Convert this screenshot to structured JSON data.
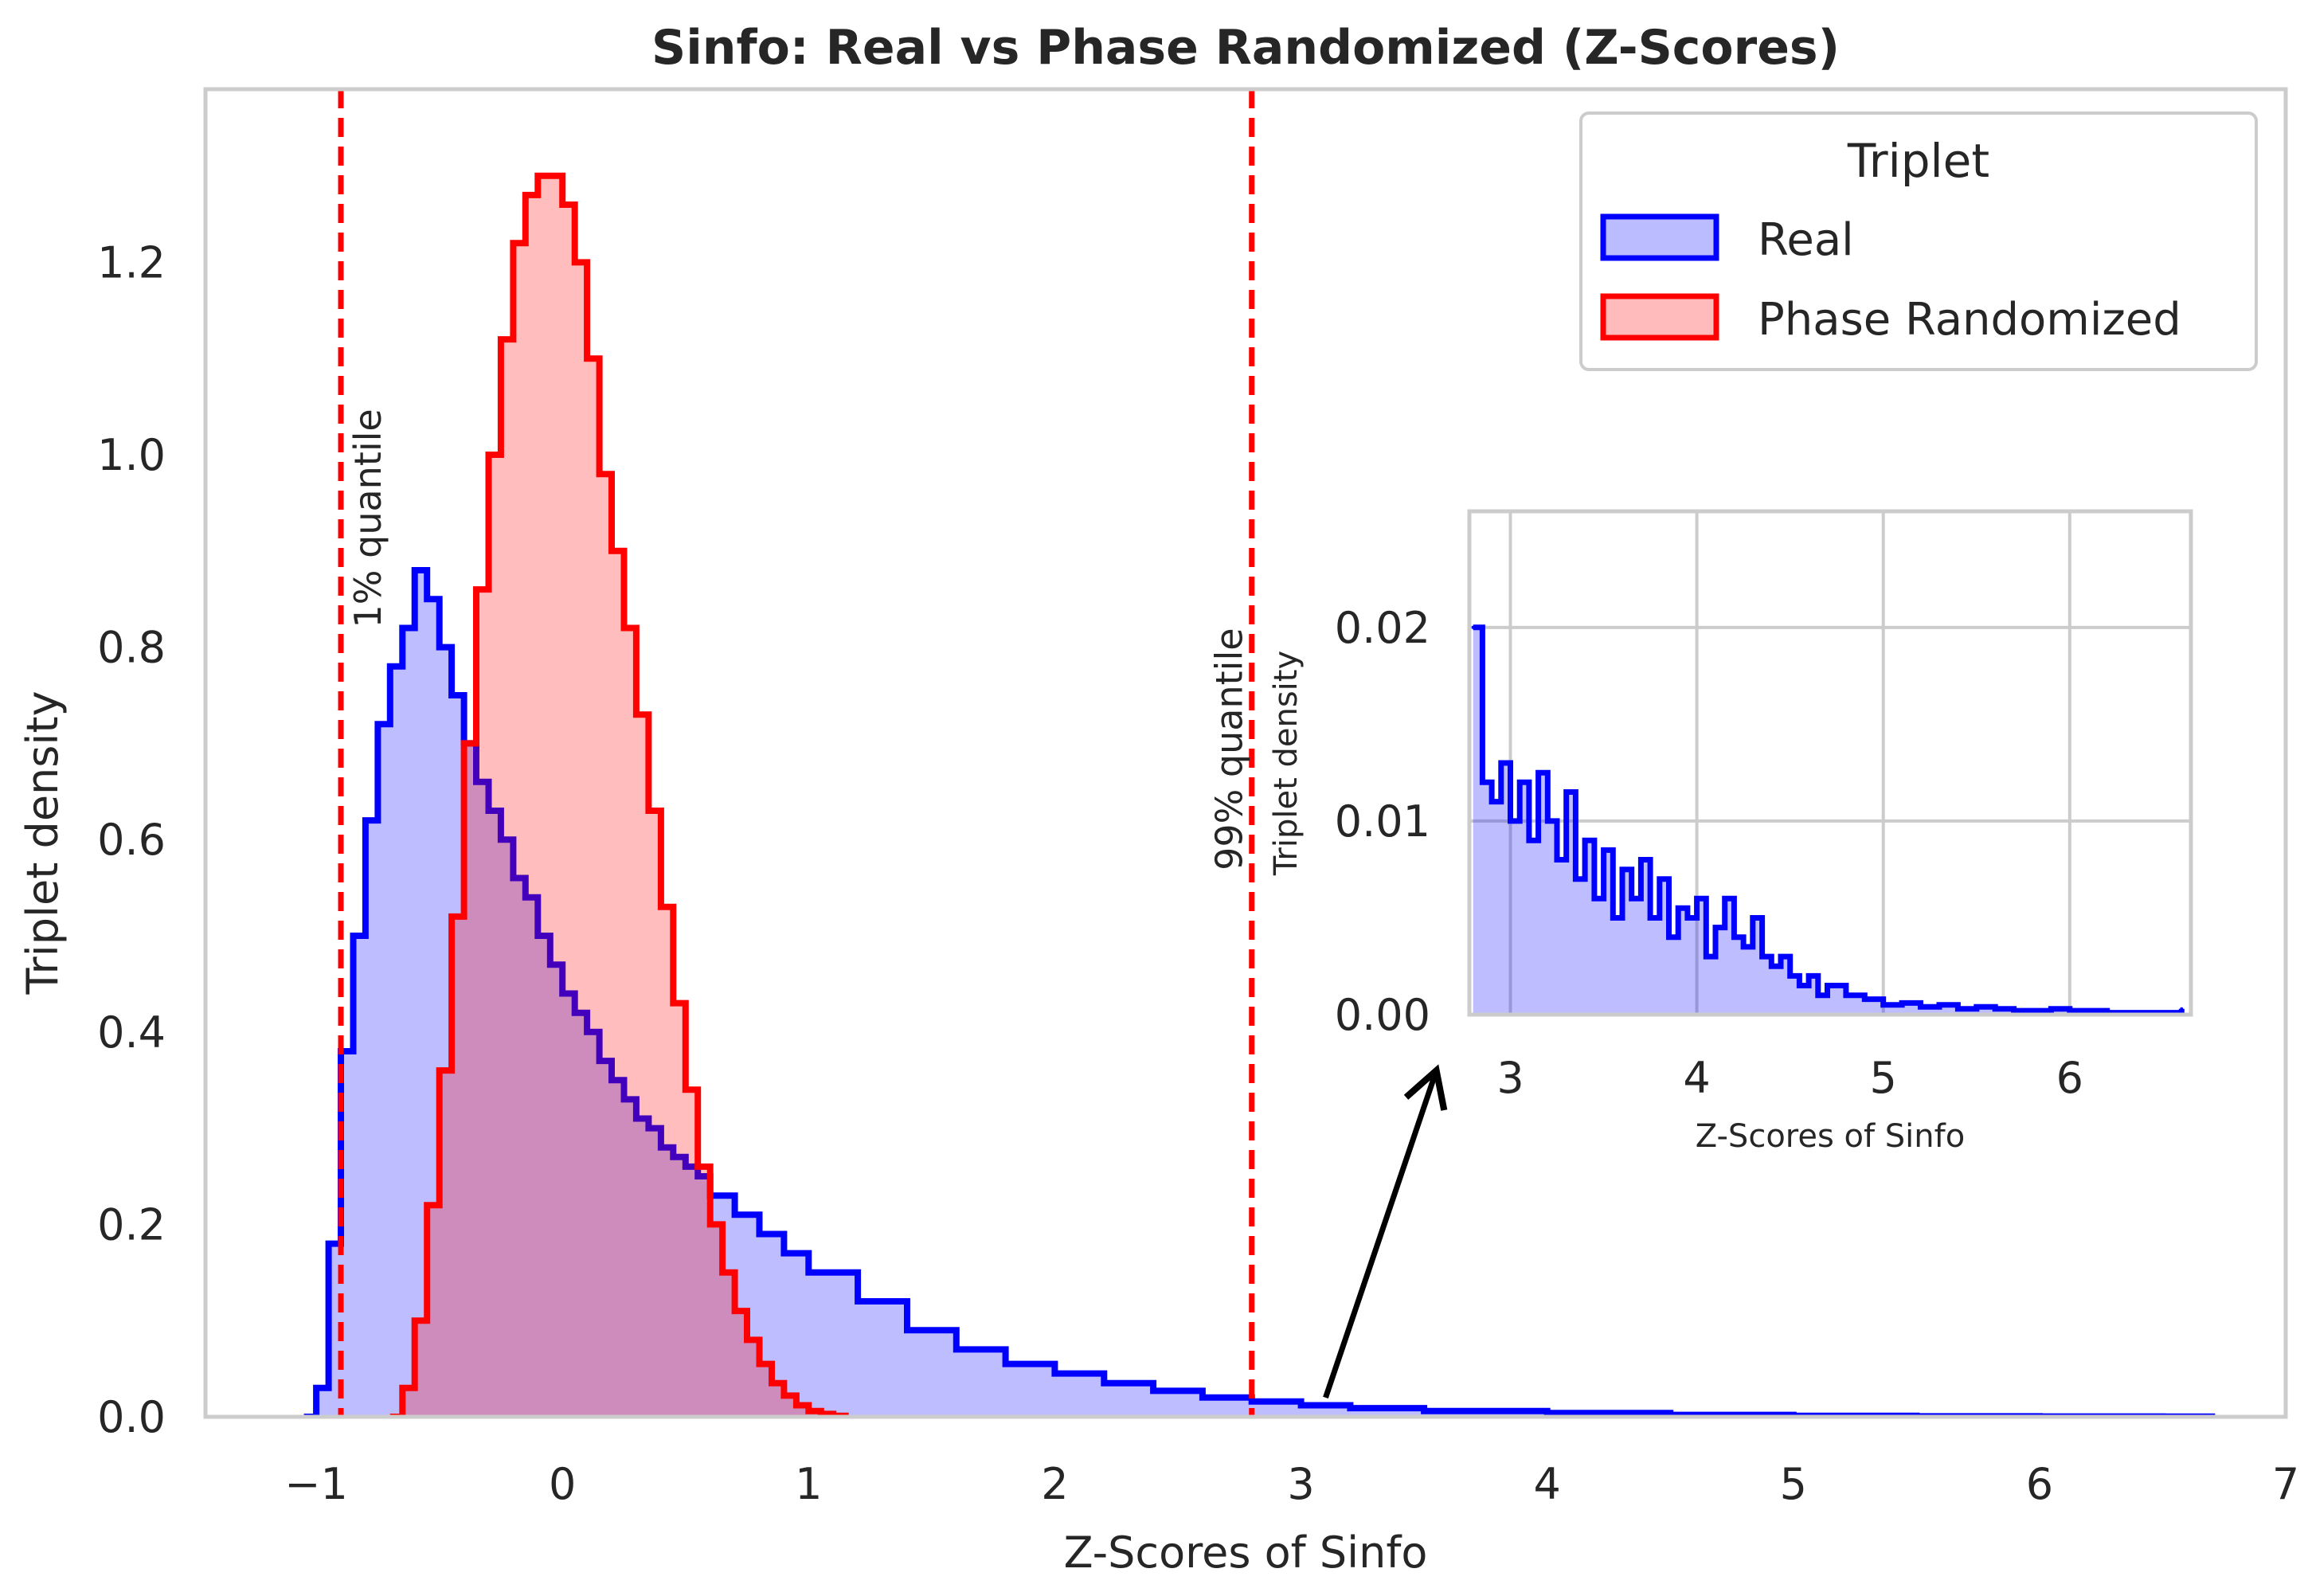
{
  "chart_data": [
    {
      "panel": "main",
      "type": "histogram-step",
      "title": "Sinfo: Real vs Phase Randomized (Z-Scores)",
      "xlabel": "Z-Scores of Sinfo",
      "ylabel": "Triplet density",
      "xlim": [
        -1.45,
        7.0
      ],
      "ylim": [
        0,
        1.38
      ],
      "xticks": [
        -1,
        0,
        1,
        2,
        3,
        4,
        5,
        6,
        7
      ],
      "xtick_labels": [
        "−1",
        "0",
        "1",
        "2",
        "3",
        "4",
        "5",
        "6",
        "7"
      ],
      "yticks": [
        0.0,
        0.2,
        0.4,
        0.6,
        0.8,
        1.0,
        1.2
      ],
      "ytick_labels": [
        "0.0",
        "0.2",
        "0.4",
        "0.6",
        "0.8",
        "1.0",
        "1.2"
      ],
      "grid": false,
      "legend": {
        "title": "Triplet",
        "placement": "upper right",
        "entries": [
          {
            "name": "Real",
            "edge": "#0000ff",
            "fill": "#bbbbff"
          },
          {
            "name": "Phase Randomized",
            "edge": "#ff0000",
            "fill": "#ffbbbb"
          }
        ]
      },
      "series": [
        {
          "name": "Real",
          "color": "#0000ff",
          "fill": "#0000ff",
          "x": [
            -1.05,
            -1.0,
            -0.95,
            -0.9,
            -0.85,
            -0.8,
            -0.75,
            -0.7,
            -0.65,
            -0.6,
            -0.55,
            -0.5,
            -0.45,
            -0.4,
            -0.35,
            -0.3,
            -0.25,
            -0.2,
            -0.15,
            -0.1,
            -0.05,
            0.0,
            0.05,
            0.1,
            0.15,
            0.2,
            0.25,
            0.3,
            0.35,
            0.4,
            0.45,
            0.5,
            0.55,
            0.6,
            0.7,
            0.8,
            0.9,
            1.0,
            1.2,
            1.4,
            1.6,
            1.8,
            2.0,
            2.2,
            2.4,
            2.6,
            2.8,
            3.0,
            3.2,
            3.5,
            4.0,
            4.5,
            5.0,
            5.5,
            6.0,
            6.5,
            6.7
          ],
          "y": [
            0.0,
            0.03,
            0.18,
            0.38,
            0.5,
            0.62,
            0.72,
            0.78,
            0.82,
            0.88,
            0.85,
            0.8,
            0.75,
            0.7,
            0.66,
            0.63,
            0.6,
            0.56,
            0.54,
            0.5,
            0.47,
            0.44,
            0.42,
            0.4,
            0.37,
            0.35,
            0.33,
            0.31,
            0.3,
            0.28,
            0.27,
            0.26,
            0.25,
            0.23,
            0.21,
            0.19,
            0.17,
            0.15,
            0.12,
            0.09,
            0.07,
            0.055,
            0.045,
            0.035,
            0.027,
            0.02,
            0.016,
            0.012,
            0.009,
            0.006,
            0.004,
            0.002,
            0.001,
            0.0005,
            0.0003,
            0.0002,
            0.0
          ]
        },
        {
          "name": "Phase Randomized",
          "color": "#ff0000",
          "fill": "#ff0000",
          "x": [
            -0.7,
            -0.65,
            -0.6,
            -0.55,
            -0.5,
            -0.45,
            -0.4,
            -0.35,
            -0.3,
            -0.25,
            -0.2,
            -0.15,
            -0.1,
            -0.05,
            0.0,
            0.05,
            0.1,
            0.15,
            0.2,
            0.25,
            0.3,
            0.35,
            0.4,
            0.45,
            0.5,
            0.55,
            0.6,
            0.65,
            0.7,
            0.75,
            0.8,
            0.85,
            0.9,
            0.95,
            1.0,
            1.05,
            1.1,
            1.15
          ],
          "y": [
            0.0,
            0.03,
            0.1,
            0.22,
            0.36,
            0.52,
            0.7,
            0.86,
            1.0,
            1.12,
            1.22,
            1.27,
            1.29,
            1.29,
            1.26,
            1.2,
            1.1,
            0.98,
            0.9,
            0.82,
            0.73,
            0.63,
            0.53,
            0.43,
            0.34,
            0.26,
            0.2,
            0.15,
            0.11,
            0.08,
            0.055,
            0.035,
            0.022,
            0.012,
            0.006,
            0.003,
            0.001,
            0.0
          ]
        }
      ],
      "annotations": [
        {
          "type": "vline",
          "x": -0.9,
          "label": "1% quantile",
          "style": "dashed",
          "color": "#ff0000"
        },
        {
          "type": "vline",
          "x": 2.8,
          "label": "99% quantile",
          "style": "dashed",
          "color": "#ff0000"
        },
        {
          "type": "arrow",
          "from": [
            3.1,
            0.02
          ],
          "to": [
            3.55,
            0.36
          ],
          "color": "#000000"
        }
      ]
    },
    {
      "panel": "inset",
      "type": "histogram-step",
      "xlabel": "Z-Scores of Sinfo",
      "ylabel": "Triplet density",
      "xlim": [
        2.78,
        6.65
      ],
      "ylim": [
        0,
        0.026
      ],
      "xticks": [
        3,
        4,
        5,
        6
      ],
      "xtick_labels": [
        "3",
        "4",
        "5",
        "6"
      ],
      "yticks": [
        0.0,
        0.01,
        0.02
      ],
      "ytick_labels": [
        "0.00",
        "0.01",
        "0.02"
      ],
      "grid": true,
      "series": [
        {
          "name": "Real",
          "color": "#0000ff",
          "x": [
            2.8,
            2.85,
            2.9,
            2.95,
            3.0,
            3.05,
            3.1,
            3.15,
            3.2,
            3.25,
            3.3,
            3.35,
            3.4,
            3.45,
            3.5,
            3.55,
            3.6,
            3.65,
            3.7,
            3.75,
            3.8,
            3.85,
            3.9,
            3.95,
            4.0,
            4.05,
            4.1,
            4.15,
            4.2,
            4.25,
            4.3,
            4.35,
            4.4,
            4.45,
            4.5,
            4.55,
            4.6,
            4.65,
            4.7,
            4.8,
            4.9,
            5.0,
            5.1,
            5.2,
            5.3,
            5.4,
            5.5,
            5.6,
            5.7,
            5.8,
            5.9,
            6.0,
            6.2,
            6.4,
            6.6
          ],
          "y": [
            0.02,
            0.012,
            0.011,
            0.013,
            0.01,
            0.012,
            0.009,
            0.0125,
            0.01,
            0.008,
            0.0115,
            0.007,
            0.009,
            0.006,
            0.0085,
            0.005,
            0.0075,
            0.006,
            0.008,
            0.005,
            0.007,
            0.004,
            0.0055,
            0.005,
            0.006,
            0.003,
            0.0045,
            0.006,
            0.004,
            0.0035,
            0.005,
            0.003,
            0.0025,
            0.003,
            0.002,
            0.0015,
            0.002,
            0.001,
            0.0015,
            0.001,
            0.0008,
            0.0005,
            0.0006,
            0.0004,
            0.0005,
            0.0003,
            0.0004,
            0.0003,
            0.0002,
            0.0002,
            0.0003,
            0.0002,
            0.0001,
            0.0001,
            0.0003
          ]
        }
      ]
    }
  ]
}
